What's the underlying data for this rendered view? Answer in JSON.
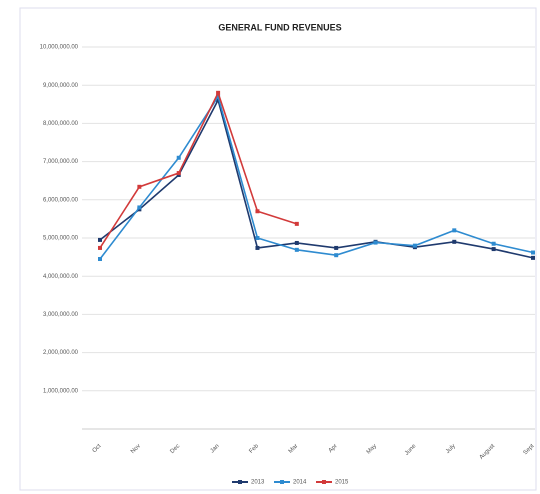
{
  "chart_data": {
    "type": "line",
    "title": "GENERAL FUND REVENUES",
    "categories": [
      "Oct",
      "Nov",
      "Dec",
      "Jan",
      "Feb",
      "Mar",
      "Apr",
      "May",
      "June",
      "July",
      "August",
      "Sept"
    ],
    "series": [
      {
        "name": "2013",
        "color": "#1f3a6e",
        "values": [
          4950000,
          5750000,
          6650000,
          8610000,
          4740000,
          4870000,
          4740000,
          4900000,
          4760000,
          4900000,
          4710000,
          4480000
        ]
      },
      {
        "name": "2014",
        "color": "#2e8bd0",
        "values": [
          4450000,
          5800000,
          7100000,
          8700000,
          5000000,
          4690000,
          4550000,
          4880000,
          4800000,
          5200000,
          4850000,
          4620000
        ]
      },
      {
        "name": "2015",
        "color": "#d23a3a",
        "values": [
          4740000,
          6340000,
          6700000,
          8800000,
          5700000,
          5370000,
          null,
          null,
          null,
          null,
          null,
          null
        ]
      }
    ],
    "ylim": [
      0,
      10000000
    ],
    "yticks": [
      {
        "value": 1000000,
        "label": "1,000,000.00"
      },
      {
        "value": 2000000,
        "label": "2,000,000.00"
      },
      {
        "value": 3000000,
        "label": "3,000,000.00"
      },
      {
        "value": 4000000,
        "label": "4,000,000.00"
      },
      {
        "value": 5000000,
        "label": "5,000,000.00"
      },
      {
        "value": 6000000,
        "label": "6,000,000.00"
      },
      {
        "value": 7000000,
        "label": "7,000,000.00"
      },
      {
        "value": 8000000,
        "label": "8,000,000.00"
      },
      {
        "value": 9000000,
        "label": "9,000,000.00"
      },
      {
        "value": 10000000,
        "label": "10,000,000.00"
      }
    ],
    "grid": true
  }
}
